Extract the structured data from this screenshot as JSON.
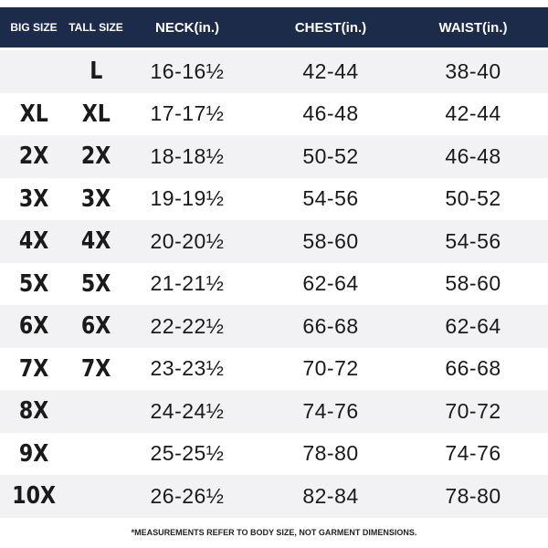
{
  "table": {
    "headers": [
      "BIG SIZE",
      "TALL SIZE",
      "NECK(in.)",
      "CHEST(in.)",
      "WAIST(in.)"
    ],
    "rows": [
      [
        null,
        "L",
        "16-16½",
        "42-44",
        "38-40"
      ],
      [
        "XL",
        "XL",
        "17-17½",
        "46-48",
        "42-44"
      ],
      [
        "2X",
        "2X",
        "18-18½",
        "50-52",
        "46-48"
      ],
      [
        "3X",
        "3X",
        "19-19½",
        "54-56",
        "50-52"
      ],
      [
        "4X",
        "4X",
        "20-20½",
        "58-60",
        "54-56"
      ],
      [
        "5X",
        "5X",
        "21-21½",
        "62-64",
        "58-60"
      ],
      [
        "6X",
        "6X",
        "22-22½",
        "66-68",
        "62-64"
      ],
      [
        "7X",
        "7X",
        "23-23½",
        "70-72",
        "66-68"
      ],
      [
        "8X",
        null,
        "24-24½",
        "74-76",
        "70-72"
      ],
      [
        "9X",
        null,
        "25-25½",
        "78-80",
        "74-76"
      ],
      [
        "10X",
        null,
        "26-26½",
        "82-84",
        "78-80"
      ]
    ]
  },
  "footnote": "*MEASUREMENTS REFER TO BODY SIZE, NOT GARMENT DIMENSIONS."
}
